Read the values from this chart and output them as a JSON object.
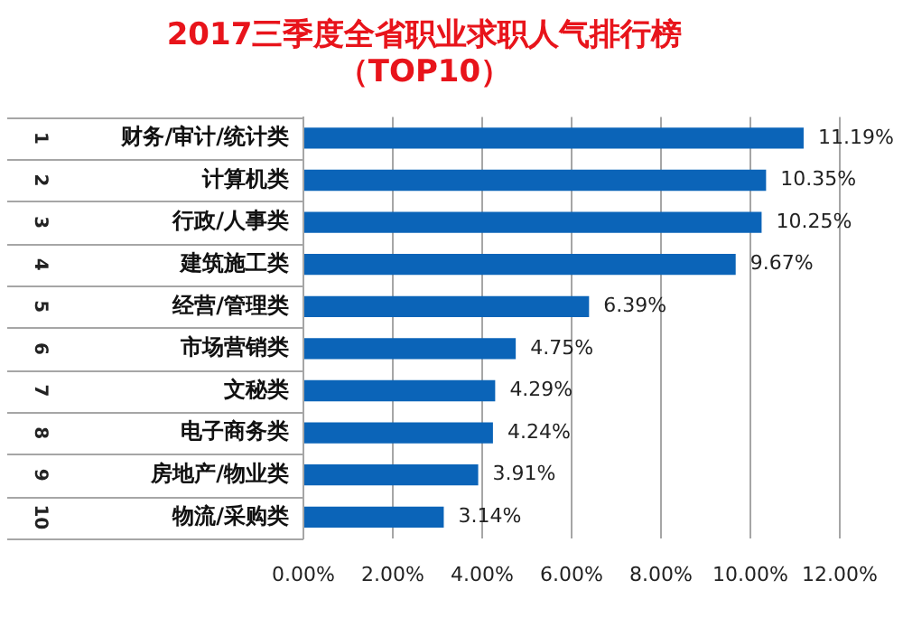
{
  "chart_data": {
    "type": "bar",
    "orientation": "horizontal",
    "title": "2017三季度全省职业求职人气排行榜",
    "subtitle": "（TOP10）",
    "categories": [
      "财务/审计/统计类",
      "计算机类",
      "行政/人事类",
      "建筑施工类",
      "经营/管理类",
      "市场营销类",
      "文秘类",
      "电子商务类",
      "房地产/物业类",
      "物流/采购类"
    ],
    "values": [
      11.19,
      10.35,
      10.25,
      9.67,
      6.39,
      4.75,
      4.29,
      4.24,
      3.91,
      3.14
    ],
    "value_labels": [
      "11.19%",
      "10.35%",
      "10.25%",
      "9.67%",
      "6.39%",
      "4.75%",
      "4.29%",
      "4.24%",
      "3.91%",
      "3.14%"
    ],
    "color": "#0b64b8",
    "xlim": [
      0,
      12
    ],
    "xticks": [
      {
        "value": 0,
        "label": "0.00%"
      },
      {
        "value": 2,
        "label": "2.00%"
      },
      {
        "value": 4,
        "label": "4.00%"
      },
      {
        "value": 6,
        "label": "6.00%"
      },
      {
        "value": 8,
        "label": "8.00%"
      },
      {
        "value": 10,
        "label": "10.00%"
      },
      {
        "value": 12,
        "label": "12.00%"
      }
    ],
    "grid": "x",
    "annotations": [
      "1",
      "2",
      "3",
      "4",
      "5",
      "6",
      "7",
      "8",
      "9",
      "10"
    ]
  }
}
